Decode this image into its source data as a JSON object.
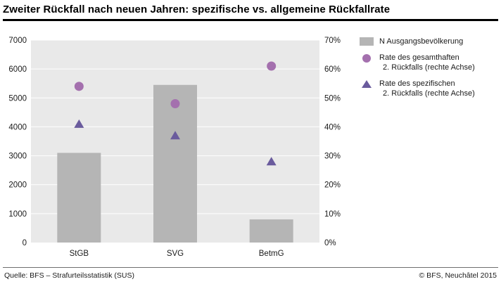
{
  "title": "Zweiter Rückfall nach neuen Jahren: spezifische vs. allgemeine Rückfallrate",
  "chart_data": {
    "type": "bar",
    "subtype": "bars with dual-axis scatter overlay",
    "categories": [
      "StGB",
      "SVG",
      "BetmG"
    ],
    "series": [
      {
        "name": "N Ausgangsbevölkerung",
        "type": "bar",
        "axis": "left",
        "marker": "square",
        "color": "#b5b5b5",
        "values": [
          3100,
          5450,
          800
        ]
      },
      {
        "name": "Rate des gesamthaften 2. Rückfalls (rechte Achse)",
        "type": "scatter",
        "axis": "right",
        "marker": "circle",
        "color": "#a470ae",
        "values": [
          54,
          48,
          61
        ]
      },
      {
        "name": "Rate des spezifischen 2. Rückfalls (rechte Achse)",
        "type": "scatter",
        "axis": "right",
        "marker": "triangle",
        "color": "#6a5b9d",
        "values": [
          41,
          37,
          28
        ]
      }
    ],
    "left_axis": {
      "min": 0,
      "max": 7000,
      "step": 1000,
      "ticks": [
        "0",
        "1000",
        "2000",
        "3000",
        "4000",
        "5000",
        "6000",
        "7000"
      ]
    },
    "right_axis": {
      "min": 0,
      "max": 70,
      "step": 10,
      "ticks": [
        "0%",
        "10%",
        "20%",
        "30%",
        "40%",
        "50%",
        "60%",
        "70%"
      ]
    },
    "grid": true,
    "plot_bg": "#e9e9e9",
    "gridline_color": "#ffffff",
    "legend_position": "right"
  },
  "legend": {
    "items": [
      {
        "marker": "square",
        "color": "#b5b5b5",
        "lines": [
          "N Ausgangsbevölkerung"
        ]
      },
      {
        "marker": "circle",
        "color": "#a470ae",
        "lines": [
          "Rate des gesamthaften",
          "2. Rückfalls (rechte Achse)"
        ]
      },
      {
        "marker": "triangle",
        "color": "#6a5b9d",
        "lines": [
          "Rate des spezifischen",
          "2. Rückfalls (rechte Achse)"
        ]
      }
    ]
  },
  "footer": {
    "source": "Quelle: BFS – Strafurteilsstatistik (SUS)",
    "copyright": "© BFS, Neuchâtel 2015"
  }
}
